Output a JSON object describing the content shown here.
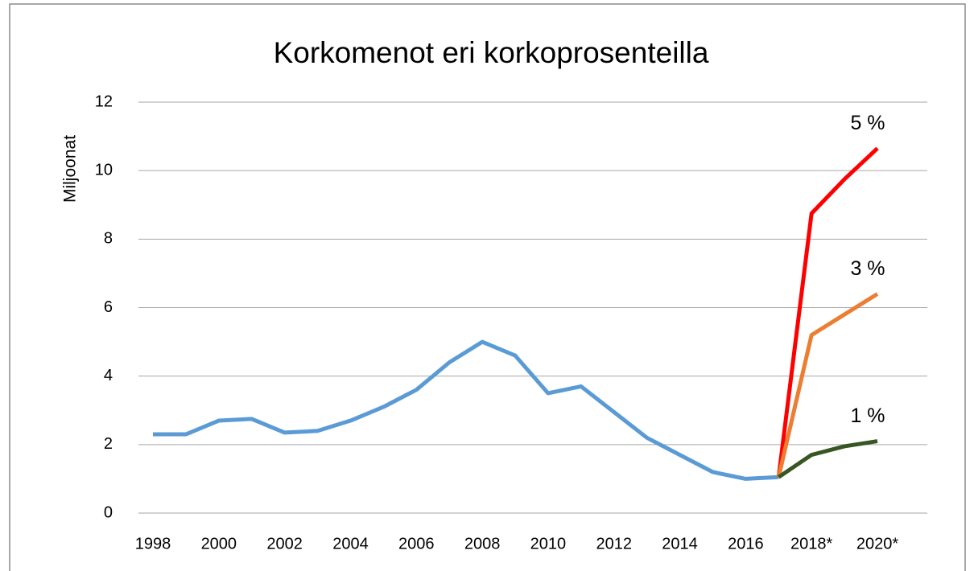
{
  "chart_data": {
    "type": "line",
    "title": "Korkomenot eri korkoprosenteilla",
    "y_label": "Miljoonat",
    "categories": [
      "1998",
      null,
      "2000",
      null,
      "2002",
      null,
      "2004",
      null,
      "2006",
      null,
      "2008",
      null,
      "2010",
      null,
      "2012",
      null,
      "2014",
      null,
      "2016",
      null,
      "2018*",
      null,
      "2020*"
    ],
    "series": [
      {
        "color": "#5b9bd5",
        "values": [
          2.3,
          2.3,
          2.7,
          2.75,
          2.35,
          2.4,
          2.7,
          3.1,
          3.6,
          4.4,
          5.0,
          4.6,
          3.5,
          3.7,
          2.95,
          2.2,
          1.7,
          1.2,
          1.0,
          1.05,
          null,
          null,
          null
        ]
      },
      {
        "name": "5 %",
        "color": "#ff0000",
        "values": [
          null,
          null,
          null,
          null,
          null,
          null,
          null,
          null,
          null,
          null,
          null,
          null,
          null,
          null,
          null,
          null,
          null,
          null,
          null,
          1.05,
          8.75,
          9.75,
          10.65
        ]
      },
      {
        "name": "3 %",
        "color": "#ed7d31",
        "values": [
          null,
          null,
          null,
          null,
          null,
          null,
          null,
          null,
          null,
          null,
          null,
          null,
          null,
          null,
          null,
          null,
          null,
          null,
          null,
          1.05,
          5.2,
          5.8,
          6.4
        ]
      },
      {
        "name": "1 %",
        "color": "#375623",
        "values": [
          null,
          null,
          null,
          null,
          null,
          null,
          null,
          null,
          null,
          null,
          null,
          null,
          null,
          null,
          null,
          null,
          null,
          null,
          null,
          1.05,
          1.7,
          1.95,
          2.1
        ]
      }
    ],
    "ylim": [
      0,
      12
    ],
    "yticks": [
      0,
      2,
      4,
      6,
      8,
      10,
      12
    ],
    "grid": true
  }
}
